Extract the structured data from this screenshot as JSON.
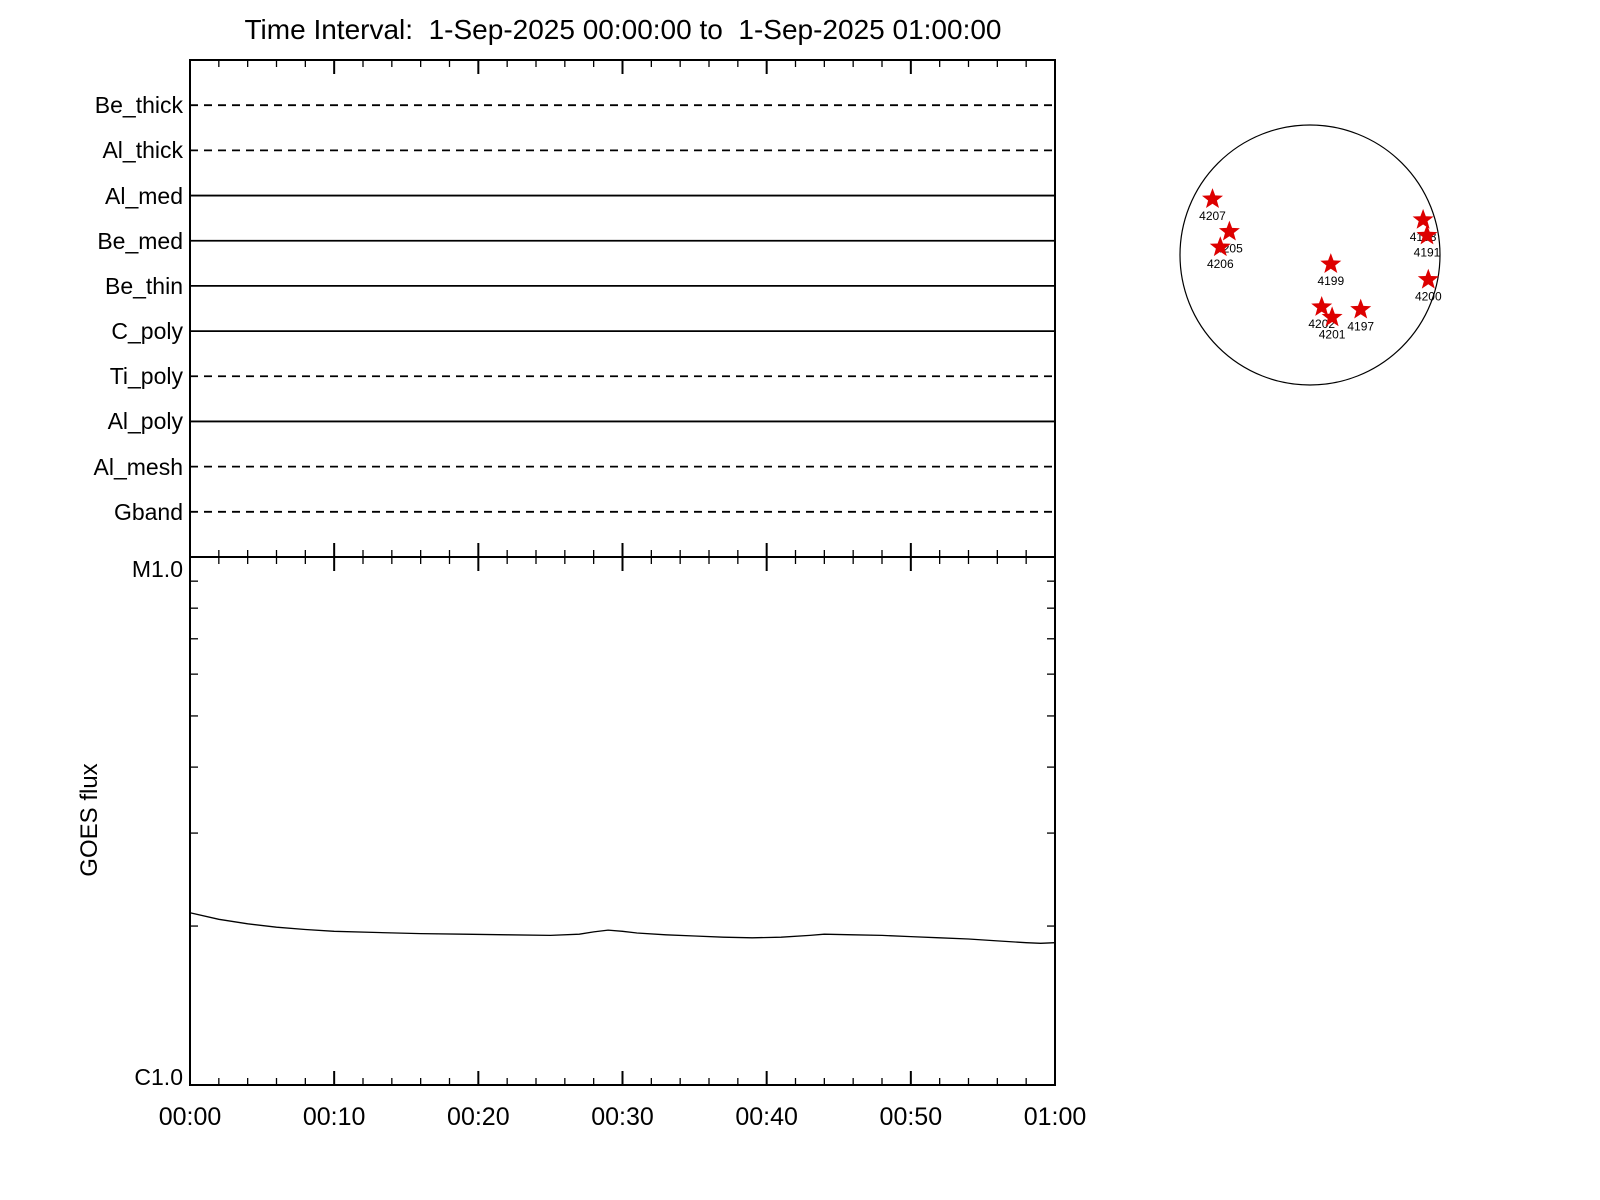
{
  "title": "Time Interval:  1-Sep-2025 00:00:00 to  1-Sep-2025 01:00:00",
  "colors": {
    "axis": "#000000",
    "star": "#dd0000"
  },
  "chart_data": [
    {
      "type": "line",
      "panel": "xrt-filter-schedule",
      "x_range": [
        "00:00",
        "01:00"
      ],
      "filters": [
        {
          "name": "Be_thick",
          "line_style": "dashed"
        },
        {
          "name": "Al_thick",
          "line_style": "dashed"
        },
        {
          "name": "Al_med",
          "line_style": "solid"
        },
        {
          "name": "Be_med",
          "line_style": "solid"
        },
        {
          "name": "Be_thin",
          "line_style": "solid"
        },
        {
          "name": "C_poly",
          "line_style": "solid"
        },
        {
          "name": "Ti_poly",
          "line_style": "dashed"
        },
        {
          "name": "Al_poly",
          "line_style": "solid"
        },
        {
          "name": "Al_mesh",
          "line_style": "dashed"
        },
        {
          "name": "Gband",
          "line_style": "dashed"
        }
      ]
    },
    {
      "type": "line",
      "panel": "goes-flux",
      "ylabel": "GOES flux",
      "yscale": "log",
      "ytick_labels": {
        "top": "M1.0",
        "bottom": "C1.0"
      },
      "ylim_wm2": [
        1e-06,
        1e-05
      ],
      "xtick_labels": [
        "00:00",
        "00:10",
        "00:20",
        "00:30",
        "00:40",
        "00:50",
        "01:00"
      ],
      "x_minutes": [
        0,
        2,
        4,
        6,
        8,
        10,
        13,
        16,
        19,
        22,
        25,
        27,
        28,
        29,
        30,
        31,
        33,
        35,
        37,
        39,
        41,
        43,
        44,
        46,
        48,
        50,
        52,
        54,
        56,
        58,
        59,
        60
      ],
      "flux_c_units": [
        2.12,
        2.06,
        2.02,
        1.99,
        1.97,
        1.955,
        1.945,
        1.935,
        1.93,
        1.925,
        1.92,
        1.93,
        1.95,
        1.965,
        1.955,
        1.94,
        1.925,
        1.915,
        1.905,
        1.9,
        1.905,
        1.92,
        1.93,
        1.925,
        1.92,
        1.91,
        1.9,
        1.89,
        1.875,
        1.86,
        1.855,
        1.86
      ]
    },
    {
      "type": "scatter",
      "panel": "solar-disk-active-regions",
      "regions": [
        {
          "noaa": "4207",
          "x": -0.75,
          "y": -0.43
        },
        {
          "noaa": "4205",
          "x": -0.62,
          "y": -0.18
        },
        {
          "noaa": "4206",
          "x": -0.69,
          "y": -0.06
        },
        {
          "noaa": "4199",
          "x": 0.16,
          "y": 0.07
        },
        {
          "noaa": "4198",
          "x": 0.87,
          "y": -0.27
        },
        {
          "noaa": "4191",
          "x": 0.9,
          "y": -0.15
        },
        {
          "noaa": "4200",
          "x": 0.91,
          "y": 0.19
        },
        {
          "noaa": "4202",
          "x": 0.09,
          "y": 0.4
        },
        {
          "noaa": "4201",
          "x": 0.17,
          "y": 0.48
        },
        {
          "noaa": "4197",
          "x": 0.39,
          "y": 0.42
        }
      ]
    }
  ]
}
